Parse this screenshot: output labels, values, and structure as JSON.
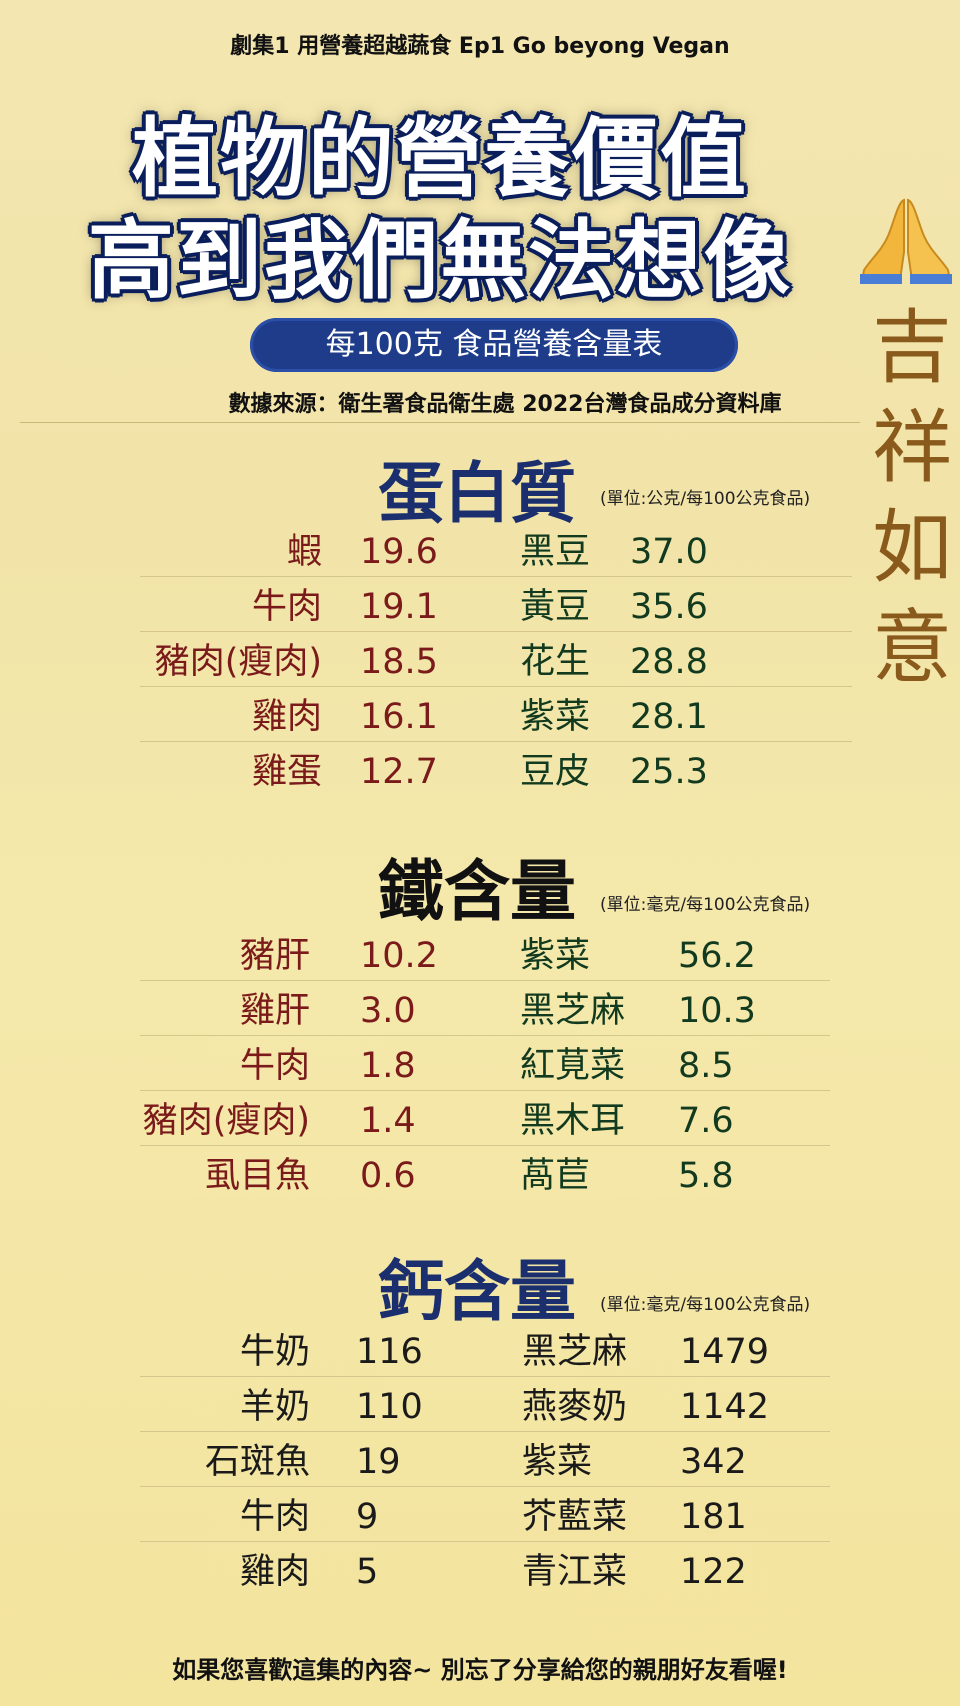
{
  "episode": "劇集1 用營養超越蔬食    Ep1 Go beyong Vegan",
  "headline": [
    "植物的營養價值",
    "高到我們無法想像"
  ],
  "pill": "每100克  食品營養含量表",
  "source": "數據來源：衛生署食品衛生處 2022台灣食品成分資料庫",
  "vertical_text": [
    "吉",
    "祥",
    "如",
    "意"
  ],
  "sections": [
    {
      "title": "蛋白質",
      "unit": "(單位:公克/每100公克食品)",
      "left": [
        {
          "name": "蝦",
          "value": "19.6"
        },
        {
          "name": "牛肉",
          "value": "19.1"
        },
        {
          "name": "豬肉(瘦肉)",
          "value": "18.5"
        },
        {
          "name": "雞肉",
          "value": "16.1"
        },
        {
          "name": "雞蛋",
          "value": "12.7"
        }
      ],
      "right": [
        {
          "name": "黑豆",
          "value": "37.0"
        },
        {
          "name": "黃豆",
          "value": "35.6"
        },
        {
          "name": "花生",
          "value": "28.8"
        },
        {
          "name": "紫菜",
          "value": "28.1"
        },
        {
          "name": "豆皮",
          "value": "25.3"
        }
      ]
    },
    {
      "title": "鐵含量",
      "unit": "(單位:毫克/每100公克食品)",
      "left": [
        {
          "name": "豬肝",
          "value": "10.2"
        },
        {
          "name": "雞肝",
          "value": "3.0"
        },
        {
          "name": "牛肉",
          "value": "1.8"
        },
        {
          "name": "豬肉(瘦肉)",
          "value": "1.4"
        },
        {
          "name": "虱目魚",
          "value": "0.6"
        }
      ],
      "right": [
        {
          "name": "紫菜",
          "value": "56.2"
        },
        {
          "name": "黑芝麻",
          "value": "10.3"
        },
        {
          "name": "紅莧菜",
          "value": "8.5"
        },
        {
          "name": "黑木耳",
          "value": "7.6"
        },
        {
          "name": "萵苣",
          "value": "5.8"
        }
      ]
    },
    {
      "title": "鈣含量",
      "unit": "(單位:毫克/每100公克食品)",
      "left": [
        {
          "name": "牛奶",
          "value": "116"
        },
        {
          "name": "羊奶",
          "value": "110"
        },
        {
          "name": "石斑魚",
          "value": "19"
        },
        {
          "name": "牛肉",
          "value": "9"
        },
        {
          "name": "雞肉",
          "value": "5"
        }
      ],
      "right": [
        {
          "name": "黑芝麻",
          "value": "1479"
        },
        {
          "name": "燕麥奶",
          "value": "1142"
        },
        {
          "name": "紫菜",
          "value": "342"
        },
        {
          "name": "芥藍菜",
          "value": "181"
        },
        {
          "name": "青江菜",
          "value": "122"
        }
      ]
    }
  ],
  "footer": "如果您喜歡這集的內容~ 別忘了分享給您的親朋好友看喔!",
  "colors": {
    "headline_outline": "#0b1f5c",
    "pill_bg": "#1e3c8a",
    "protein_title": "#1b2f6e",
    "iron_title": "#111111",
    "calcium_title": "#1b2f6e",
    "left_text_protein_iron": "#7a1a1a",
    "right_text_protein_iron": "#123a1f",
    "vertical_text": "#8a5a1c"
  }
}
